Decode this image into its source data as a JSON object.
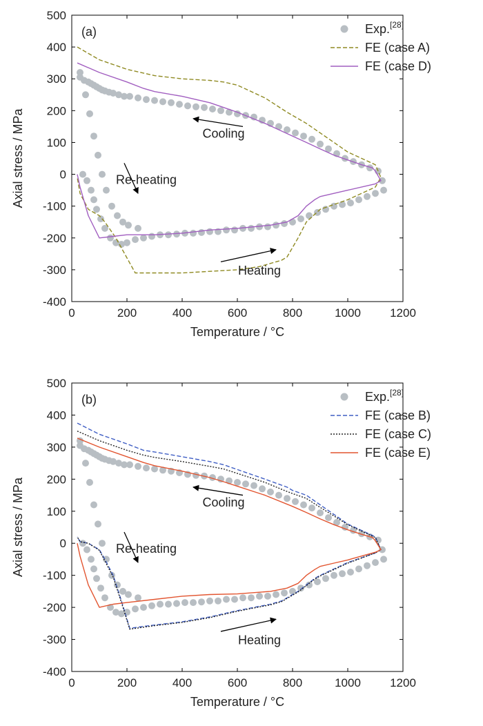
{
  "chart_data": [
    {
      "type": "line",
      "panel_label": "(a)",
      "xlabel": "Temperature / °C",
      "ylabel": "Axial stress / MPa",
      "xlim": [
        0,
        1200
      ],
      "ylim": [
        -400,
        500
      ],
      "x_ticks": [
        0,
        200,
        400,
        600,
        800,
        1000,
        1200
      ],
      "y_ticks": [
        -400,
        -300,
        -200,
        -100,
        0,
        100,
        200,
        300,
        400,
        500
      ],
      "grid": false,
      "legend_position": "top-right",
      "legend_sup": "[28]",
      "annotations": [
        {
          "text": "Cooling",
          "x": 550,
          "y": 115
        },
        {
          "text": "Re-heating",
          "x": 270,
          "y": -30
        },
        {
          "text": "Heating",
          "x": 680,
          "y": -315
        }
      ],
      "series": [
        {
          "name": "Exp.",
          "style": "marker",
          "color": "#b8bec3",
          "x": [
            30,
            45,
            60,
            70,
            80,
            90,
            100,
            110,
            120,
            135,
            150,
            170,
            190,
            210,
            240,
            270,
            300,
            330,
            360,
            390,
            420,
            450,
            480,
            510,
            540,
            570,
            600,
            630,
            660,
            690,
            720,
            750,
            780,
            810,
            840,
            870,
            900,
            930,
            960,
            990,
            1020,
            1050,
            1080,
            1110,
            1125,
            40,
            55,
            70,
            80,
            90,
            105,
            120,
            140,
            160,
            180,
            200,
            230,
            260,
            290,
            320,
            350,
            380,
            410,
            440,
            470,
            500,
            530,
            560,
            590,
            620,
            650,
            680,
            710,
            740,
            770,
            800,
            830,
            860,
            890,
            920,
            950,
            980,
            1010,
            1040,
            1070,
            1100,
            1130,
            30,
            50,
            65,
            80,
            95,
            110,
            125,
            145,
            165,
            185,
            205,
            240
          ],
          "y": [
            305,
            295,
            290,
            285,
            280,
            275,
            270,
            265,
            262,
            258,
            255,
            250,
            245,
            245,
            240,
            235,
            232,
            228,
            225,
            220,
            215,
            212,
            210,
            205,
            200,
            195,
            190,
            185,
            180,
            170,
            160,
            150,
            140,
            130,
            120,
            110,
            95,
            80,
            65,
            50,
            40,
            30,
            20,
            10,
            -20,
            0,
            -20,
            -50,
            -80,
            -110,
            -140,
            -170,
            -200,
            -215,
            -220,
            -215,
            -205,
            -200,
            -195,
            -190,
            -190,
            -188,
            -185,
            -185,
            -183,
            -180,
            -180,
            -175,
            -175,
            -170,
            -170,
            -165,
            -165,
            -160,
            -155,
            -150,
            -140,
            -130,
            -120,
            -110,
            -100,
            -95,
            -90,
            -80,
            -70,
            -60,
            -50,
            320,
            250,
            190,
            120,
            60,
            0,
            -50,
            -100,
            -130,
            -150,
            -160,
            -170
          ]
        },
        {
          "name": "FE (case A)",
          "style": "dashed",
          "color": "#8f8a22",
          "x": [
            20,
            100,
            200,
            300,
            400,
            500,
            550,
            600,
            700,
            780,
            850,
            900,
            950,
            1000,
            1050,
            1100,
            1110,
            1120,
            1120,
            1100,
            1000,
            900,
            850,
            820,
            780,
            760,
            720,
            680,
            600,
            500,
            400,
            230,
            160,
            120,
            100,
            60,
            30,
            20
          ],
          "y": [
            400,
            360,
            330,
            310,
            300,
            295,
            290,
            280,
            240,
            195,
            160,
            130,
            100,
            70,
            50,
            30,
            10,
            -10,
            -10,
            -40,
            -80,
            -110,
            -150,
            -200,
            -260,
            -270,
            -280,
            -290,
            -300,
            -305,
            -310,
            -310,
            -200,
            -150,
            -130,
            -110,
            -60,
            -10
          ]
        },
        {
          "name": "FE (case D)",
          "style": "solid",
          "color": "#a15ec0",
          "x": [
            20,
            100,
            200,
            260,
            300,
            400,
            500,
            550,
            600,
            700,
            800,
            850,
            900,
            950,
            1000,
            1050,
            1090,
            1100,
            1120,
            1120,
            1100,
            1000,
            950,
            900,
            880,
            850,
            820,
            780,
            720,
            600,
            500,
            400,
            300,
            200,
            150,
            100,
            60,
            30,
            20
          ],
          "y": [
            350,
            320,
            290,
            270,
            260,
            245,
            225,
            210,
            195,
            160,
            120,
            100,
            80,
            60,
            45,
            30,
            20,
            10,
            -20,
            -20,
            -30,
            -50,
            -60,
            -70,
            -80,
            -100,
            -130,
            -150,
            -160,
            -170,
            -175,
            -185,
            -190,
            -190,
            -195,
            -200,
            -130,
            -40,
            0
          ]
        }
      ]
    },
    {
      "type": "line",
      "panel_label": "(b)",
      "xlabel": "Temperature / °C",
      "ylabel": "Axial stress / MPa",
      "xlim": [
        0,
        1200
      ],
      "ylim": [
        -400,
        500
      ],
      "x_ticks": [
        0,
        200,
        400,
        600,
        800,
        1000,
        1200
      ],
      "y_ticks": [
        -400,
        -300,
        -200,
        -100,
        0,
        100,
        200,
        300,
        400,
        500
      ],
      "grid": false,
      "legend_position": "top-right",
      "legend_sup": "[28]",
      "annotations": [
        {
          "text": "Cooling",
          "x": 550,
          "y": 115
        },
        {
          "text": "Re-heating",
          "x": 270,
          "y": -30
        },
        {
          "text": "Heating",
          "x": 680,
          "y": -315
        }
      ],
      "series": [
        {
          "name": "Exp.",
          "style": "marker",
          "color": "#b8bec3",
          "x": [
            30,
            45,
            60,
            70,
            80,
            90,
            100,
            110,
            120,
            135,
            150,
            170,
            190,
            210,
            240,
            270,
            300,
            330,
            360,
            390,
            420,
            450,
            480,
            510,
            540,
            570,
            600,
            630,
            660,
            690,
            720,
            750,
            780,
            810,
            840,
            870,
            900,
            930,
            960,
            990,
            1020,
            1050,
            1080,
            1110,
            1125,
            40,
            55,
            70,
            80,
            90,
            105,
            120,
            140,
            160,
            180,
            200,
            230,
            260,
            290,
            320,
            350,
            380,
            410,
            440,
            470,
            500,
            530,
            560,
            590,
            620,
            650,
            680,
            710,
            740,
            770,
            800,
            830,
            860,
            890,
            920,
            950,
            980,
            1010,
            1040,
            1070,
            1100,
            1130,
            30,
            50,
            65,
            80,
            95,
            110,
            125,
            145,
            165,
            185,
            205,
            240
          ],
          "y": [
            305,
            295,
            290,
            285,
            280,
            275,
            270,
            265,
            262,
            258,
            255,
            250,
            245,
            245,
            240,
            235,
            232,
            228,
            225,
            220,
            215,
            212,
            210,
            205,
            200,
            195,
            190,
            185,
            180,
            170,
            160,
            150,
            140,
            130,
            120,
            110,
            95,
            80,
            65,
            50,
            40,
            30,
            20,
            10,
            -20,
            0,
            -20,
            -50,
            -80,
            -110,
            -140,
            -170,
            -200,
            -215,
            -220,
            -215,
            -205,
            -200,
            -195,
            -190,
            -190,
            -188,
            -185,
            -185,
            -183,
            -180,
            -180,
            -175,
            -175,
            -170,
            -170,
            -165,
            -165,
            -160,
            -155,
            -150,
            -140,
            -130,
            -120,
            -110,
            -100,
            -95,
            -90,
            -80,
            -70,
            -60,
            -50,
            320,
            250,
            190,
            120,
            60,
            0,
            -50,
            -100,
            -130,
            -150,
            -160,
            -170
          ]
        },
        {
          "name": "FE (case B)",
          "style": "dashed",
          "color": "#3f5ec4",
          "x": [
            20,
            100,
            200,
            260,
            300,
            400,
            500,
            550,
            600,
            700,
            780,
            800,
            850,
            900,
            950,
            1000,
            1050,
            1100,
            1120,
            1120,
            1100,
            1000,
            900,
            880,
            850,
            820,
            800,
            780,
            760,
            720,
            600,
            500,
            400,
            300,
            210,
            180,
            150,
            120,
            100,
            60,
            30,
            20
          ],
          "y": [
            375,
            340,
            310,
            290,
            285,
            270,
            255,
            245,
            230,
            200,
            175,
            165,
            150,
            120,
            90,
            60,
            40,
            20,
            -20,
            -20,
            -30,
            -60,
            -100,
            -110,
            -130,
            -150,
            -160,
            -170,
            -180,
            -190,
            -210,
            -230,
            -245,
            -255,
            -265,
            -180,
            -100,
            -50,
            -20,
            0,
            5,
            20
          ],
          "note": "loop"
        },
        {
          "name": "FE (case C)",
          "style": "dotted",
          "color": "#222222",
          "x": [
            20,
            100,
            200,
            260,
            300,
            400,
            500,
            550,
            600,
            700,
            770,
            800,
            850,
            900,
            950,
            1000,
            1050,
            1100,
            1120,
            1120,
            1100,
            1000,
            900,
            880,
            850,
            820,
            800,
            780,
            760,
            720,
            600,
            500,
            400,
            300,
            210,
            180,
            150,
            120,
            100,
            60,
            30,
            20
          ],
          "y": [
            350,
            320,
            290,
            275,
            268,
            255,
            240,
            232,
            218,
            190,
            165,
            155,
            140,
            112,
            85,
            58,
            38,
            18,
            -20,
            -20,
            -30,
            -62,
            -102,
            -112,
            -132,
            -152,
            -162,
            -172,
            -182,
            -192,
            -212,
            -232,
            -247,
            -257,
            -268,
            -185,
            -105,
            -55,
            -22,
            0,
            5,
            20
          ]
        },
        {
          "name": "FE (case E)",
          "style": "solid",
          "color": "#e2542f",
          "x": [
            20,
            100,
            200,
            260,
            300,
            400,
            500,
            550,
            600,
            700,
            800,
            850,
            900,
            950,
            1000,
            1050,
            1090,
            1100,
            1120,
            1120,
            1100,
            1000,
            950,
            900,
            880,
            850,
            820,
            780,
            720,
            600,
            500,
            400,
            300,
            200,
            150,
            100,
            60,
            30,
            20
          ],
          "y": [
            328,
            300,
            270,
            252,
            242,
            225,
            205,
            192,
            178,
            150,
            115,
            96,
            76,
            58,
            42,
            28,
            18,
            8,
            -20,
            -20,
            -28,
            -52,
            -62,
            -72,
            -82,
            -100,
            -125,
            -140,
            -150,
            -158,
            -160,
            -165,
            -175,
            -185,
            -190,
            -200,
            -130,
            -40,
            0
          ]
        }
      ]
    }
  ]
}
